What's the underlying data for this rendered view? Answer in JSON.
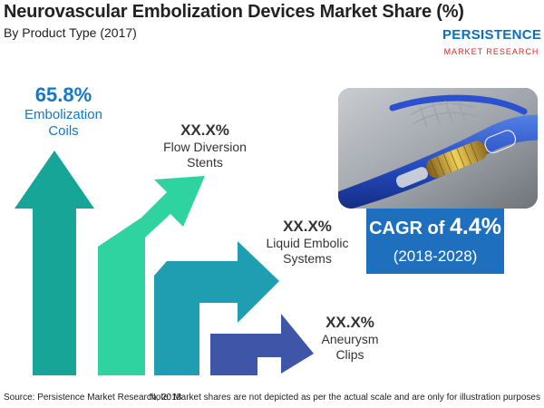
{
  "chart_data": {
    "type": "bar",
    "title": "Neurovascular Embolization Devices Market Share (%)",
    "subtitle": "By Product Type (2017)",
    "categories": [
      "Embolization Coils",
      "Flow Diversion Stents",
      "Liquid Embolic Systems",
      "Aneurysm Clips"
    ],
    "series": [
      {
        "values": [
          65.8,
          null,
          null,
          null
        ]
      }
    ],
    "value_labels": [
      "65.8%",
      "XX.X%",
      "XX.X%",
      "XX.X%"
    ],
    "category_labels": [
      [
        "Embolization",
        "Coils"
      ],
      [
        "Flow Diversion",
        "Stents"
      ],
      [
        "Liquid Embolic",
        "Systems"
      ],
      [
        "Aneurysm",
        "Clips"
      ]
    ],
    "colors": [
      "#16a596",
      "#2ed3a0",
      "#1e9eb0",
      "#3f55a8"
    ],
    "legend": "none",
    "grid": false
  },
  "logo": {
    "main": "PERSISTENCE",
    "sub": "MARKET RESEARCH"
  },
  "cagr": {
    "prefix": "CAGR of ",
    "value": "4.4%",
    "years": "(2018-2028)"
  },
  "footer": {
    "source": "Source: Persistence Market Research, 2018",
    "note": "Note: Market shares are not depicted as per the actual scale and are only for illustration purposes"
  }
}
